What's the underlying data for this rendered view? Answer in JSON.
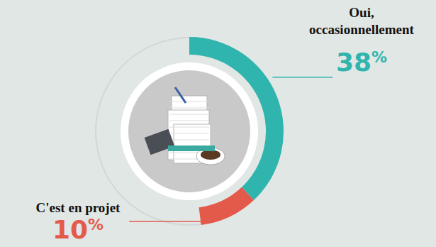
{
  "chart_data": {
    "type": "donut",
    "categories": [
      "Oui, occasionnellement",
      "C'est en projet"
    ],
    "values": [
      38,
      10
    ],
    "value_labels": [
      "38%",
      "10%"
    ],
    "colors": [
      "#2fb5ad",
      "#e35a4b"
    ],
    "data_labels": true
  }
}
